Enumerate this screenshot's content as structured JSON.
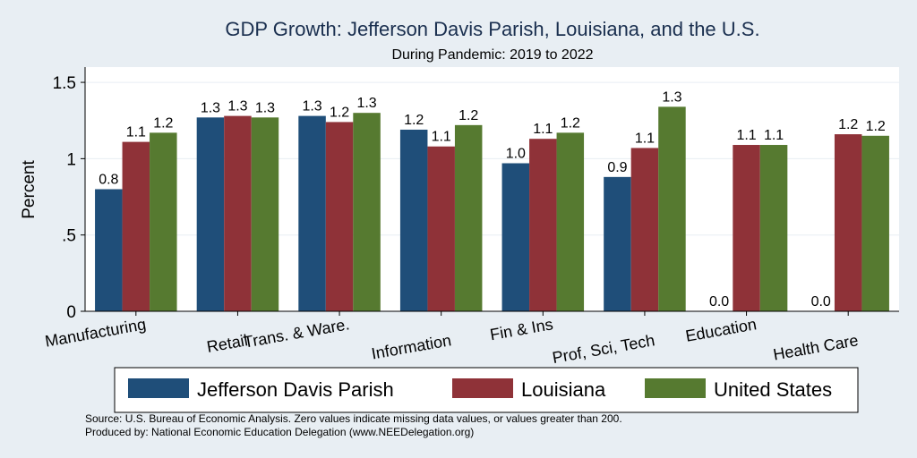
{
  "colors": {
    "background": "#e8eef3",
    "plot_background": "#ffffff",
    "title": "#1a2f4f",
    "text": "#000000",
    "grid": "#e8eef3",
    "series": [
      "#1f4e79",
      "#8f3238",
      "#567a30"
    ]
  },
  "chart_data": {
    "type": "bar",
    "title": "GDP Growth: Jefferson Davis Parish, Louisiana, and the U.S.",
    "subtitle": "During Pandemic: 2019 to 2022",
    "xlabel": "",
    "ylabel": "Percent",
    "ylim": [
      0,
      1.6
    ],
    "yticks": [
      0,
      0.5,
      1,
      1.5
    ],
    "ytick_labels": [
      "0",
      ".5",
      "1",
      "1.5"
    ],
    "grid": true,
    "categories": [
      "Manufacturing",
      "Retail",
      "Trans. & Ware.",
      "Information",
      "Fin & Ins",
      "Prof, Sci, Tech",
      "Education",
      "Health Care"
    ],
    "series": [
      {
        "name": "Jefferson Davis Parish",
        "values": [
          0.8,
          1.27,
          1.28,
          1.19,
          0.97,
          0.88,
          0.0,
          0.0
        ],
        "labels": [
          "0.8",
          "1.3",
          "1.3",
          "1.2",
          "1.0",
          "0.9",
          "0.0",
          "0.0"
        ]
      },
      {
        "name": "Louisiana",
        "values": [
          1.11,
          1.28,
          1.24,
          1.08,
          1.13,
          1.07,
          1.09,
          1.16
        ],
        "labels": [
          "1.1",
          "1.3",
          "1.2",
          "1.1",
          "1.1",
          "1.1",
          "1.1",
          "1.2"
        ]
      },
      {
        "name": "United States",
        "values": [
          1.17,
          1.27,
          1.3,
          1.22,
          1.17,
          1.34,
          1.09,
          1.15
        ],
        "labels": [
          "1.2",
          "1.3",
          "1.3",
          "1.2",
          "1.2",
          "1.3",
          "1.1",
          "1.2"
        ]
      }
    ],
    "legend_position": "bottom"
  },
  "footer": {
    "source": "Source: U.S. Bureau of Economic Analysis. Zero values indicate missing data values, or values greater than 200.",
    "produced_by": "Produced by: National Economic Education Delegation (www.NEEDelegation.org)"
  }
}
